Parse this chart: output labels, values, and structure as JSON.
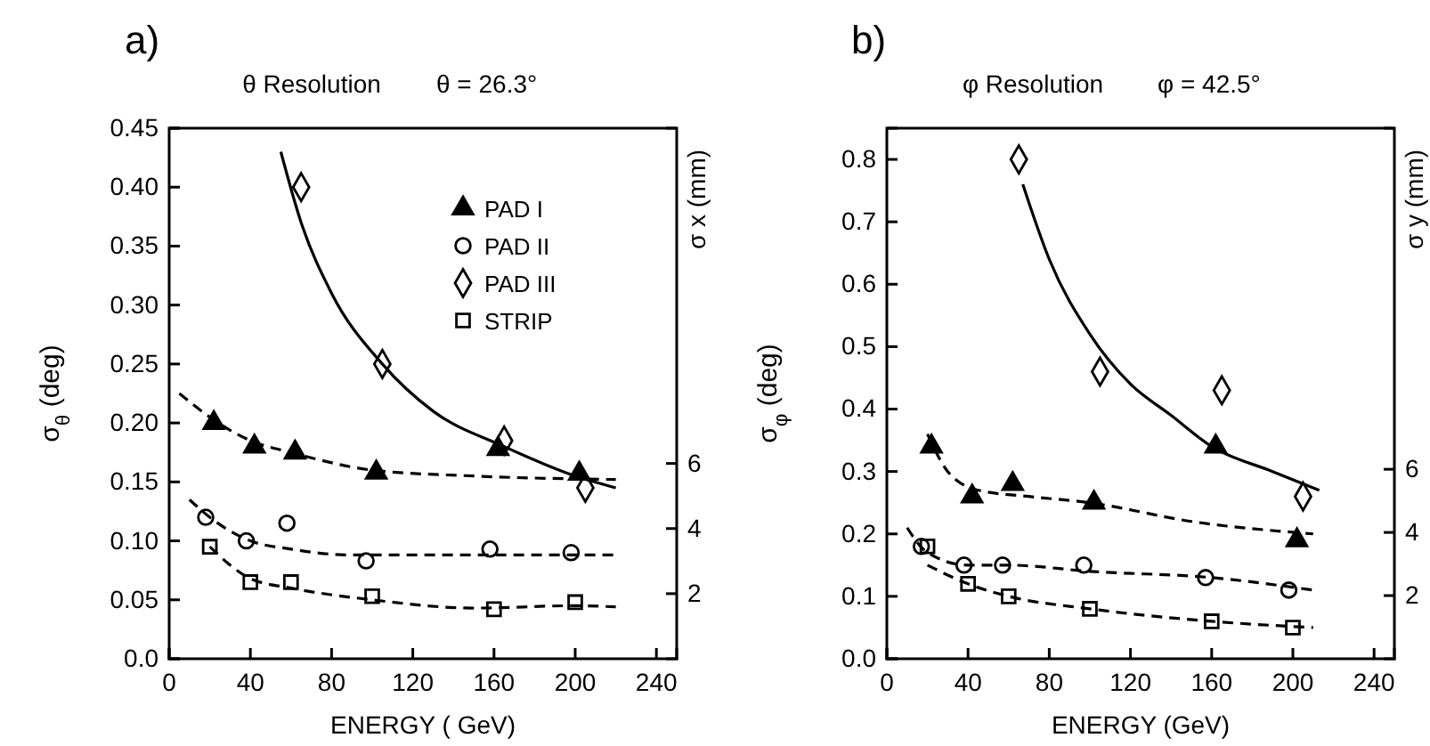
{
  "chart_data": [
    {
      "type": "scatter",
      "title": "θ Resolution",
      "xlabel": "ENERGY ( GeV)",
      "ylabel": "σ$_{θ}$ (deg)",
      "y2label": "σ x (mm)",
      "annotations": [
        "a)",
        "θ = 26.3°"
      ],
      "xlim": [
        0,
        250
      ],
      "xticks": [
        0,
        40,
        80,
        120,
        160,
        200,
        240
      ],
      "ylim": [
        0,
        0.45
      ],
      "yticks": [
        {
          "value": 0,
          "label": "0.0"
        },
        {
          "value": 0.05,
          "label": "0.05"
        },
        {
          "value": 0.1,
          "label": "0.10"
        },
        {
          "value": 0.15,
          "label": "0.15"
        },
        {
          "value": 0.2,
          "label": "0.20"
        },
        {
          "value": 0.25,
          "label": "0.25"
        },
        {
          "value": 0.3,
          "label": "0.30"
        },
        {
          "value": 0.35,
          "label": "0.35"
        },
        {
          "value": 0.4,
          "label": "0.40"
        },
        {
          "value": 0.45,
          "label": "0.45"
        }
      ],
      "y2lim": [
        0,
        16.3
      ],
      "y2ticks": [
        2,
        4,
        6
      ],
      "grid": false,
      "legend": "top right",
      "series": [
        {
          "name": "PAD I",
          "marker": "triangle",
          "color": "#000000",
          "x": [
            22,
            42,
            62,
            102,
            162,
            202
          ],
          "values": [
            0.2,
            0.18,
            0.175,
            0.158,
            0.178,
            0.157
          ]
        },
        {
          "name": "PAD II",
          "marker": "circle",
          "color": "#000000",
          "x": [
            18,
            38,
            58,
            97,
            158,
            198
          ],
          "values": [
            0.12,
            0.1,
            0.115,
            0.083,
            0.093,
            0.09
          ]
        },
        {
          "name": "PAD III",
          "marker": "diamond",
          "color": "#000000",
          "x": [
            65,
            105,
            165,
            205
          ],
          "values": [
            0.4,
            0.25,
            0.185,
            0.145
          ]
        },
        {
          "name": "STRIP",
          "marker": "square",
          "color": "#000000",
          "x": [
            20,
            40,
            60,
            100,
            160,
            200
          ],
          "values": [
            0.095,
            0.065,
            0.065,
            0.053,
            0.042,
            0.048
          ]
        },
        {
          "type": "line",
          "line_style": "dashed",
          "color": "#000000",
          "x": [
            5,
            20,
            40,
            60,
            100,
            150,
            220
          ],
          "values": [
            0.225,
            0.205,
            0.185,
            0.175,
            0.16,
            0.155,
            0.152
          ]
        },
        {
          "type": "line",
          "line_style": "solid",
          "color": "#000000",
          "x": [
            55,
            65,
            80,
            105,
            130,
            165,
            200,
            220
          ],
          "values": [
            0.43,
            0.37,
            0.31,
            0.25,
            0.21,
            0.18,
            0.155,
            0.145
          ]
        },
        {
          "type": "line",
          "line_style": "dashed",
          "color": "#000000",
          "x": [
            10,
            20,
            40,
            60,
            90,
            140,
            220
          ],
          "values": [
            0.135,
            0.12,
            0.1,
            0.093,
            0.088,
            0.088,
            0.088
          ]
        },
        {
          "type": "line",
          "line_style": "dashed",
          "color": "#000000",
          "x": [
            20,
            40,
            60,
            100,
            150,
            200,
            220
          ],
          "values": [
            0.095,
            0.068,
            0.06,
            0.05,
            0.043,
            0.045,
            0.044
          ]
        }
      ]
    },
    {
      "type": "scatter",
      "title": "φ Resolution",
      "xlabel": "ENERGY (GeV)",
      "ylabel": "σ$_{φ}$ (deg)",
      "y2label": "σ y (mm)",
      "annotations": [
        "b)",
        "φ = 42.5°"
      ],
      "xlim": [
        0,
        250
      ],
      "xticks": [
        0,
        40,
        80,
        120,
        160,
        200,
        240
      ],
      "ylim": [
        0,
        0.85
      ],
      "yticks": [
        {
          "value": 0,
          "label": "0.0"
        },
        0.1,
        0.2,
        0.3,
        0.4,
        0.5,
        0.6,
        0.7,
        0.8
      ],
      "y2lim": [
        0,
        16.8
      ],
      "y2ticks": [
        2,
        4,
        6
      ],
      "grid": false,
      "series": [
        {
          "marker": "triangle",
          "color": "#000000",
          "x": [
            22,
            42,
            62,
            102,
            162,
            202
          ],
          "values": [
            0.34,
            0.26,
            0.28,
            0.25,
            0.34,
            0.19
          ]
        },
        {
          "marker": "circle",
          "color": "#000000",
          "x": [
            17,
            38,
            57,
            97,
            157,
            198
          ],
          "values": [
            0.18,
            0.15,
            0.15,
            0.15,
            0.13,
            0.11
          ]
        },
        {
          "marker": "diamond",
          "color": "#000000",
          "x": [
            65,
            105,
            165,
            205
          ],
          "values": [
            0.8,
            0.46,
            0.43,
            0.26
          ]
        },
        {
          "marker": "square",
          "color": "#000000",
          "x": [
            20,
            40,
            60,
            100,
            160,
            200
          ],
          "values": [
            0.18,
            0.12,
            0.1,
            0.08,
            0.06,
            0.05
          ]
        },
        {
          "type": "line",
          "line_style": "solid",
          "color": "#000000",
          "x": [
            67,
            80,
            100,
            120,
            140,
            160,
            190,
            213
          ],
          "values": [
            0.76,
            0.64,
            0.52,
            0.44,
            0.39,
            0.34,
            0.3,
            0.27
          ]
        },
        {
          "type": "line",
          "line_style": "dashed",
          "color": "#000000",
          "x": [
            20,
            30,
            45,
            70,
            100,
            150,
            210
          ],
          "values": [
            0.36,
            0.3,
            0.27,
            0.26,
            0.25,
            0.22,
            0.2
          ]
        },
        {
          "type": "line",
          "line_style": "dashed",
          "color": "#000000",
          "x": [
            10,
            20,
            40,
            60,
            100,
            160,
            210
          ],
          "values": [
            0.21,
            0.17,
            0.15,
            0.15,
            0.14,
            0.13,
            0.11
          ]
        },
        {
          "type": "line",
          "line_style": "dashed",
          "color": "#000000",
          "x": [
            20,
            40,
            60,
            100,
            160,
            210
          ],
          "values": [
            0.15,
            0.12,
            0.1,
            0.08,
            0.06,
            0.05
          ]
        }
      ]
    }
  ]
}
